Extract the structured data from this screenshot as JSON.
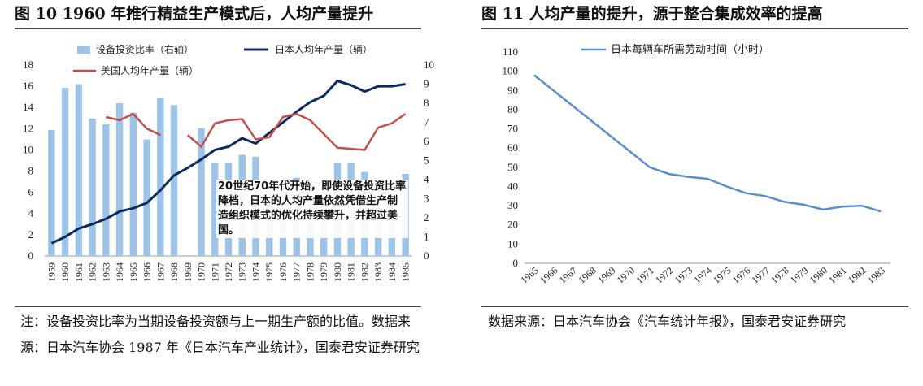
{
  "left": {
    "title": "图  10 1960 年推行精益生产模式后，人均产量提升",
    "note": "注：设备投资比率为当期设备投资额与上一期生产额的比值。数据来源：日本汽车协会 1987 年《日本汽车产业统计》，国泰君安证券研究"
  },
  "right": {
    "title": "图  11  人均产量的提升，源于整合集成效率的提高",
    "note": "数据来源：日本汽车协会《汽车统计年报》，国泰君安证券研究"
  },
  "colors": {
    "bar": "#9dc3e6",
    "japan_line": "#0c2a5e",
    "us_line": "#c0504d",
    "hours_line": "#5b8ec9"
  },
  "chart_data": [
    {
      "type": "bar",
      "categories": [
        "1959",
        "1960",
        "1961",
        "1962",
        "1963",
        "1964",
        "1965",
        "1966",
        "1967",
        "1968",
        "1969",
        "1970",
        "1971",
        "1972",
        "1973",
        "1974",
        "1975",
        "1976",
        "1977",
        "1978",
        "1979",
        "1980",
        "1981",
        "1982",
        "1983",
        "1984",
        "1985"
      ],
      "series": [
        {
          "name": "设备投资比率（右轴）",
          "type": "bar",
          "axis": "right",
          "values": [
            6.6,
            8.8,
            9.0,
            7.2,
            6.9,
            8.0,
            7.5,
            6.1,
            8.3,
            7.9,
            null,
            6.7,
            4.9,
            4.9,
            5.3,
            5.2,
            3.8,
            4.0,
            4.1,
            3.9,
            3.8,
            4.9,
            4.9,
            4.4,
            3.6,
            4.0,
            4.3
          ]
        },
        {
          "name": "日本人均年产量（辆）",
          "type": "line",
          "axis": "left",
          "values": [
            1.2,
            1.8,
            2.6,
            3.0,
            3.5,
            4.2,
            4.5,
            5.0,
            6.2,
            7.6,
            8.3,
            9.1,
            10.0,
            10.3,
            11.1,
            10.6,
            11.6,
            12.6,
            13.6,
            14.5,
            15.1,
            16.5,
            16.1,
            15.5,
            16.0,
            16.0,
            16.2
          ]
        },
        {
          "name": "美国人均年产量（辆）",
          "type": "line",
          "axis": "left",
          "values": [
            null,
            null,
            null,
            null,
            13.1,
            12.8,
            13.4,
            12.0,
            11.4,
            null,
            11.4,
            10.3,
            12.5,
            12.8,
            12.9,
            11.0,
            11.2,
            13.1,
            13.4,
            12.8,
            11.5,
            10.2,
            10.1,
            10.0,
            12.1,
            12.5,
            13.4
          ]
        }
      ],
      "ylim": [
        0,
        18
      ],
      "y2lim": [
        0,
        10
      ],
      "yticks": [
        0,
        2,
        4,
        6,
        8,
        10,
        12,
        14,
        16,
        18
      ],
      "y2ticks": [
        0,
        1,
        2,
        3,
        4,
        5,
        6,
        7,
        8,
        9,
        10
      ],
      "legend": "top",
      "annotation": "20世纪70年代开始，即使设备投资比率降档，日本的人均产量依然凭借生产制造组织模式的优化持续攀升，并超过美国。"
    },
    {
      "type": "line",
      "categories": [
        "1965",
        "1966",
        "1967",
        "1968",
        "1969",
        "1970",
        "1971",
        "1972",
        "1973",
        "1974",
        "1975",
        "1976",
        "1977",
        "1978",
        "1979",
        "1980",
        "1981",
        "1982",
        "1983"
      ],
      "series": [
        {
          "name": "日本每辆车所需劳动时间（小时）",
          "values": [
            98,
            90,
            82,
            74,
            66,
            58,
            50,
            46.5,
            45,
            44,
            40,
            36.5,
            35,
            32,
            30.5,
            28,
            29.5,
            30,
            27
          ]
        }
      ],
      "ylim": [
        0,
        110
      ],
      "yticks": [
        0,
        10,
        20,
        30,
        40,
        50,
        60,
        70,
        80,
        90,
        100,
        110
      ],
      "legend": "top"
    }
  ]
}
